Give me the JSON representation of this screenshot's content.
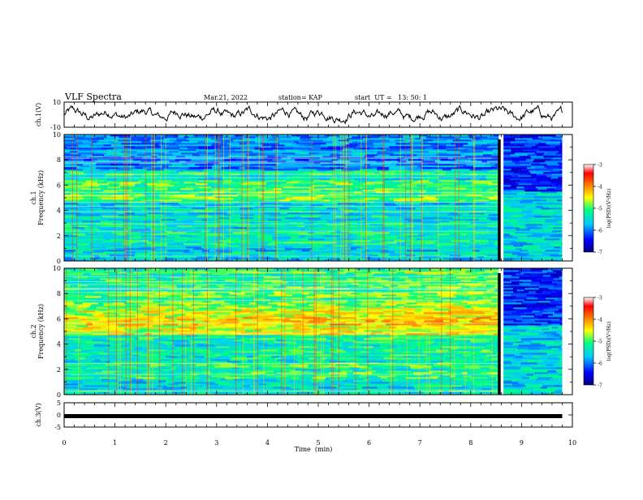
{
  "header": {
    "title": "VLF Spectra",
    "date": "Mar.21, 2022",
    "station": "station= KAP",
    "start": "start  UT =   13: 50: 1"
  },
  "chart_data": [
    {
      "type": "line",
      "panel": "ch1-waveform",
      "ylabel": "ch.1(V)",
      "xlim": [
        0,
        10
      ],
      "ylim": [
        -10,
        10
      ],
      "yticks": [
        "10",
        "-10"
      ],
      "note": "noisy waveform oscillating roughly between -8 and +8 V over 0-9.8 min"
    },
    {
      "type": "heatmap",
      "panel": "ch1-spectrogram",
      "ylabel": "ch.1\nFrequency (kHz)",
      "xlim": [
        0,
        10
      ],
      "ylim": [
        0,
        10
      ],
      "yticks": [
        "0",
        "2",
        "4",
        "6",
        "8",
        "10"
      ],
      "data_end_min": 9.8,
      "event_min": 8.55,
      "colorbar": {
        "label": "log(PSD)(V²/Hz)",
        "range": [
          -7,
          -3
        ],
        "ticks": [
          "-3",
          "-4",
          "-5",
          "-6",
          "-7"
        ],
        "colors": [
          "#000080",
          "#0000ff",
          "#00c8ff",
          "#00ff80",
          "#ffff00",
          "#ff8000",
          "#ff0000",
          "#ffffff"
        ]
      }
    },
    {
      "type": "heatmap",
      "panel": "ch2-spectrogram",
      "ylabel": "ch.2\nFrequency (kHz)",
      "xlim": [
        0,
        10
      ],
      "ylim": [
        0,
        10
      ],
      "yticks": [
        "0",
        "2",
        "4",
        "6",
        "8",
        "10"
      ],
      "data_end_min": 9.8,
      "event_min": 8.55,
      "colorbar": {
        "label": "log(PSD)(V²/Hz)",
        "range": [
          -7,
          -3
        ],
        "ticks": [
          "-3",
          "-4",
          "-5",
          "-6",
          "-7"
        ],
        "colors": [
          "#000080",
          "#0000ff",
          "#00c8ff",
          "#00ff80",
          "#ffff00",
          "#ff8000",
          "#ff0000",
          "#ffffff"
        ]
      }
    },
    {
      "type": "line",
      "panel": "ch3-waveform",
      "ylabel": "ch.3(V)",
      "xlim": [
        0,
        10
      ],
      "ylim": [
        -5,
        5
      ],
      "yticks": [
        "5",
        "0",
        "-5"
      ],
      "level": -0.5,
      "note": "thick flat trace near 0 V across 0-9.8 min"
    }
  ],
  "xaxis": {
    "label": "Time  (min)",
    "ticks": [
      "0",
      "1",
      "2",
      "3",
      "4",
      "5",
      "6",
      "7",
      "8",
      "9",
      "10"
    ]
  }
}
